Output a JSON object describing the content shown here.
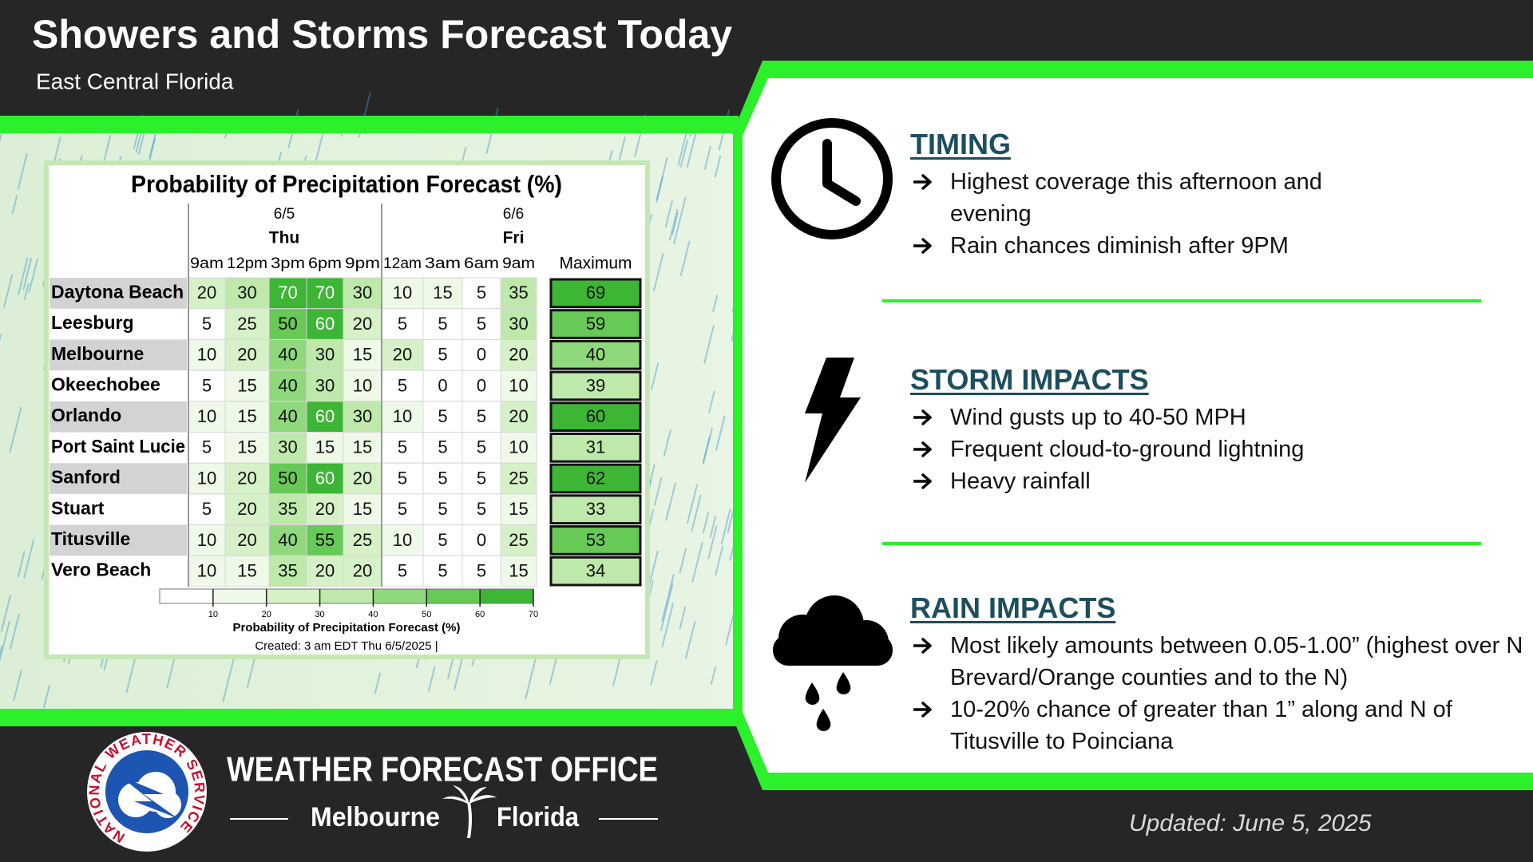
{
  "header": {
    "title": "Showers and Storms Forecast Today",
    "subtitle": "East Central Florida"
  },
  "table": {
    "title": "Probability of Precipitation Forecast (%)",
    "days": [
      {
        "date": "6/5",
        "day": "Thu"
      },
      {
        "date": "6/6",
        "day": "Fri"
      }
    ],
    "hours": [
      "9am",
      "12pm",
      "3pm",
      "6pm",
      "9pm",
      "12am",
      "3am",
      "6am",
      "9am"
    ],
    "max_header": "Maximum",
    "rows": [
      {
        "name": "Daytona Beach",
        "values": [
          20,
          30,
          70,
          70,
          30,
          10,
          15,
          5,
          35
        ],
        "max": 69
      },
      {
        "name": "Leesburg",
        "values": [
          5,
          25,
          50,
          60,
          20,
          5,
          5,
          5,
          30
        ],
        "max": 59
      },
      {
        "name": "Melbourne",
        "values": [
          10,
          20,
          40,
          30,
          15,
          20,
          5,
          0,
          20
        ],
        "max": 40
      },
      {
        "name": "Okeechobee",
        "values": [
          5,
          15,
          40,
          30,
          10,
          5,
          0,
          0,
          10
        ],
        "max": 39
      },
      {
        "name": "Orlando",
        "values": [
          10,
          15,
          40,
          60,
          30,
          10,
          5,
          5,
          20
        ],
        "max": 60
      },
      {
        "name": "Port Saint Lucie",
        "values": [
          5,
          15,
          30,
          15,
          15,
          5,
          5,
          5,
          10
        ],
        "max": 31
      },
      {
        "name": "Sanford",
        "values": [
          10,
          20,
          50,
          60,
          20,
          5,
          5,
          5,
          25
        ],
        "max": 62
      },
      {
        "name": "Stuart",
        "values": [
          5,
          20,
          35,
          20,
          15,
          5,
          5,
          5,
          15
        ],
        "max": 33
      },
      {
        "name": "Titusville",
        "values": [
          10,
          20,
          40,
          55,
          25,
          10,
          5,
          0,
          25
        ],
        "max": 53
      },
      {
        "name": "Vero Beach",
        "values": [
          10,
          15,
          35,
          20,
          20,
          5,
          5,
          5,
          15
        ],
        "max": 34
      }
    ],
    "legend": {
      "range": [
        0,
        70
      ],
      "ticks": [
        10,
        20,
        30,
        40,
        50,
        60,
        70
      ],
      "label": "Probability of Precipitation Forecast (%)"
    },
    "created": "Created: 3 am EDT Thu 6/5/2025 |"
  },
  "sections": [
    {
      "heading": "TIMING",
      "bullets": [
        "Highest coverage this afternoon and evening",
        "Rain chances diminish after 9PM"
      ]
    },
    {
      "heading": "STORM IMPACTS",
      "bullets": [
        "Wind gusts up to 40-50 MPH",
        "Frequent cloud-to-ground lightning",
        "Heavy rainfall"
      ]
    },
    {
      "heading": "RAIN IMPACTS",
      "bullets": [
        "Most likely amounts between 0.05-1.00” (highest over N Brevard/Orange counties and to the N)",
        "10-20% chance of greater than 1” along and N of Titusville to Poinciana"
      ]
    }
  ],
  "footer": {
    "logo_text": "NATIONAL WEATHER SERVICE",
    "office": "WEATHER FORECAST OFFICE",
    "city": "Melbourne",
    "state": "Florida",
    "updated": "Updated: June 5, 2025"
  }
}
